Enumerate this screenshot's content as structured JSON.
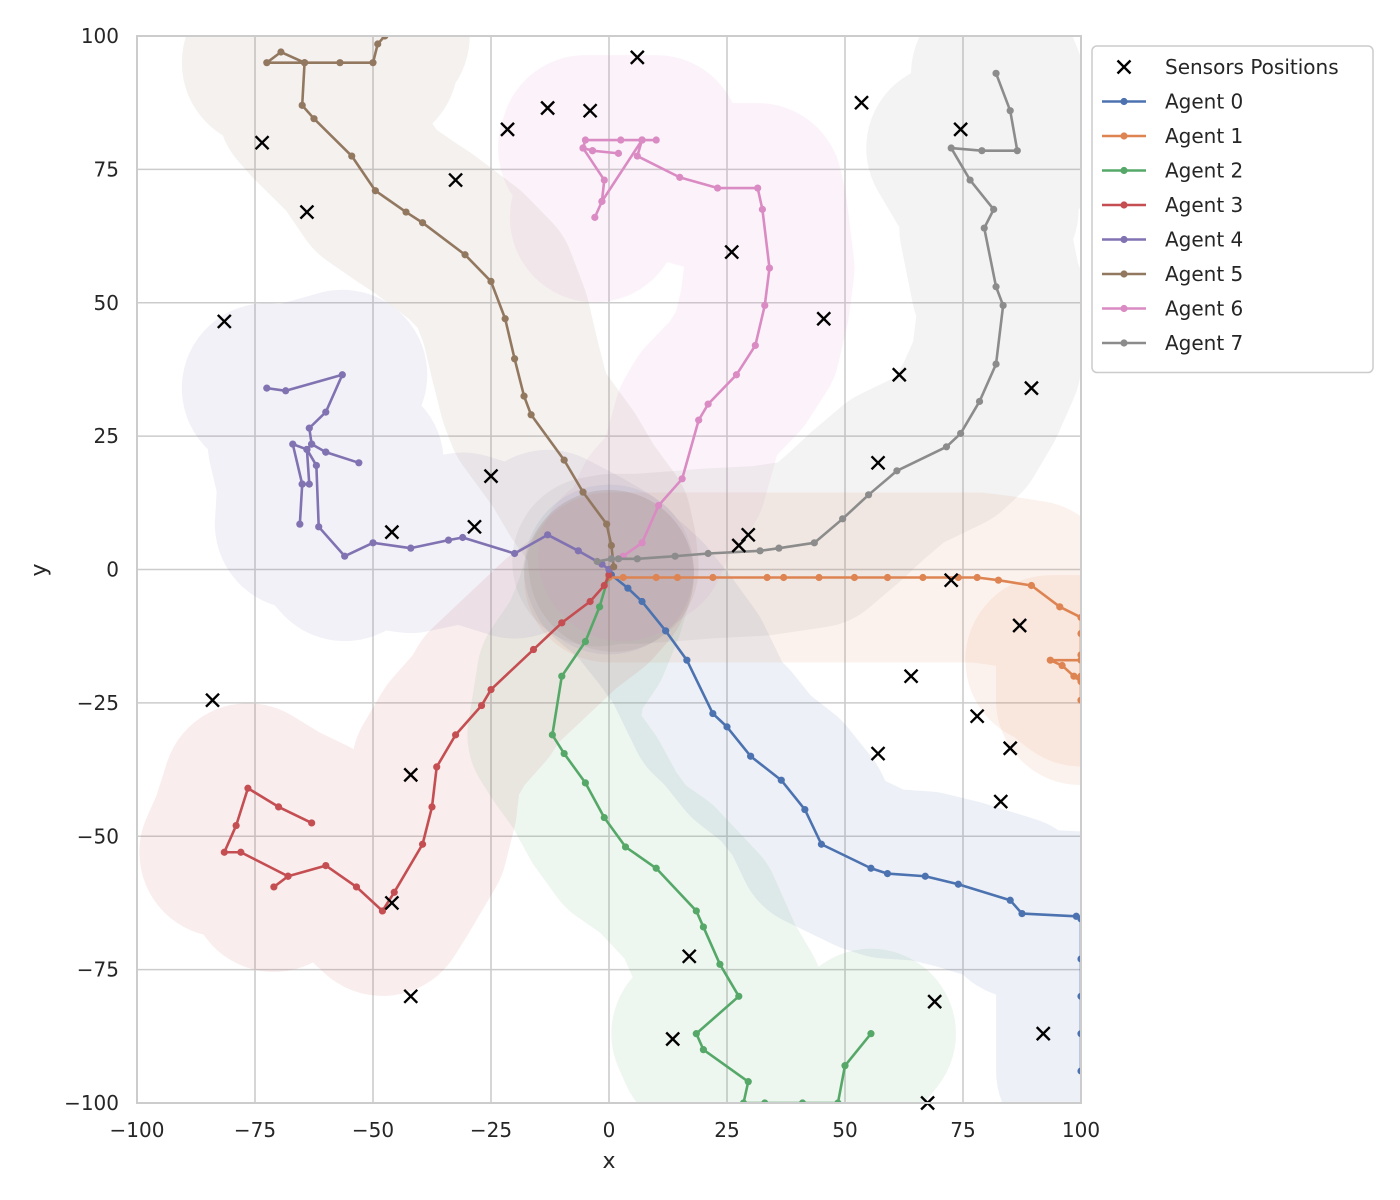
{
  "chart_data": {
    "type": "line",
    "title": "",
    "xlabel": "x",
    "ylabel": "y",
    "xlim": [
      -100,
      100
    ],
    "ylim": [
      -100,
      100
    ],
    "xticks": [
      -100,
      -75,
      -50,
      -25,
      0,
      25,
      50,
      75,
      100
    ],
    "yticks": [
      -100,
      -75,
      -50,
      -25,
      0,
      25,
      50,
      75,
      100
    ],
    "xtick_labels": [
      "−100",
      "−75",
      "−50",
      "−25",
      "0",
      "25",
      "50",
      "75",
      "100"
    ],
    "ytick_labels": [
      "−100",
      "−75",
      "−50",
      "−25",
      "0",
      "25",
      "50",
      "75",
      "100"
    ],
    "grid": true,
    "legend_position": "outside top-right",
    "coverage_radius": 18,
    "sensors": {
      "name": "Sensors Positions",
      "marker": "x",
      "color": "#000000",
      "points": [
        [
          6,
          96
        ],
        [
          -13,
          86.5
        ],
        [
          -4,
          86
        ],
        [
          -21.5,
          82.5
        ],
        [
          -73.5,
          80
        ],
        [
          -32.5,
          73
        ],
        [
          -64,
          67
        ],
        [
          -81.5,
          46.5
        ],
        [
          53.5,
          87.5
        ],
        [
          74.5,
          82.5
        ],
        [
          26,
          59.5
        ],
        [
          45.5,
          47
        ],
        [
          61.5,
          36.5
        ],
        [
          89.5,
          34
        ],
        [
          57,
          20
        ],
        [
          -25,
          17.5
        ],
        [
          -28.5,
          8
        ],
        [
          -46,
          7
        ],
        [
          29.5,
          6.5
        ],
        [
          27.5,
          4.5
        ],
        [
          72.5,
          -2
        ],
        [
          87,
          -10.5
        ],
        [
          64,
          -20
        ],
        [
          78,
          -27.5
        ],
        [
          85,
          -33.5
        ],
        [
          57,
          -34.5
        ],
        [
          83,
          -43.5
        ],
        [
          -84,
          -24.5
        ],
        [
          -42,
          -38.5
        ],
        [
          -46,
          -62.5
        ],
        [
          -42,
          -80
        ],
        [
          17,
          -72.5
        ],
        [
          13.5,
          -88
        ],
        [
          69,
          -81
        ],
        [
          92,
          -87
        ],
        [
          67.5,
          -100
        ]
      ]
    },
    "series": [
      {
        "name": "Agent 0",
        "color": "#4c72b0",
        "points": [
          [
            0,
            0
          ],
          [
            0.5,
            -1
          ],
          [
            4,
            -3.5
          ],
          [
            7,
            -6
          ],
          [
            12,
            -11.5
          ],
          [
            16.5,
            -17
          ],
          [
            22,
            -27
          ],
          [
            25,
            -29.5
          ],
          [
            30,
            -35
          ],
          [
            36.5,
            -39.5
          ],
          [
            41.5,
            -45
          ],
          [
            45,
            -51.5
          ],
          [
            55.5,
            -56
          ],
          [
            59,
            -57
          ],
          [
            67,
            -57.5
          ],
          [
            74,
            -59
          ],
          [
            85,
            -62
          ],
          [
            87.5,
            -64.5
          ],
          [
            99,
            -65
          ],
          [
            100,
            -65.5
          ],
          [
            100,
            -73
          ],
          [
            100,
            -80
          ],
          [
            100,
            -87
          ],
          [
            100,
            -94
          ]
        ]
      },
      {
        "name": "Agent 1",
        "color": "#dd8452",
        "points": [
          [
            0,
            -1.5
          ],
          [
            3,
            -1.5
          ],
          [
            10,
            -1.5
          ],
          [
            14.5,
            -1.5
          ],
          [
            22,
            -1.5
          ],
          [
            33.5,
            -1.5
          ],
          [
            37,
            -1.5
          ],
          [
            44.5,
            -1.5
          ],
          [
            52,
            -1.5
          ],
          [
            59,
            -1.5
          ],
          [
            66.5,
            -1.5
          ],
          [
            74,
            -1.5
          ],
          [
            78,
            -1.5
          ],
          [
            82.5,
            -2
          ],
          [
            89.5,
            -3
          ],
          [
            95.5,
            -7
          ],
          [
            100,
            -9
          ],
          [
            100,
            -12
          ],
          [
            100,
            -16
          ],
          [
            100,
            -20
          ],
          [
            100,
            -24.5
          ]
        ]
      },
      {
        "name": "Agent 1 tail",
        "color": "#dd8452",
        "legend": false,
        "points": [
          [
            100,
            -17
          ],
          [
            93.5,
            -17
          ],
          [
            96,
            -18
          ],
          [
            98.5,
            -20
          ],
          [
            100,
            -21
          ]
        ]
      },
      {
        "name": "Agent 2",
        "color": "#55a868",
        "points": [
          [
            0,
            -1
          ],
          [
            -2,
            -7
          ],
          [
            -5,
            -13.5
          ],
          [
            -10,
            -20
          ],
          [
            -12,
            -31
          ],
          [
            -9.5,
            -34.5
          ],
          [
            -5,
            -40
          ],
          [
            -1,
            -46.5
          ],
          [
            3.5,
            -52
          ],
          [
            10,
            -56
          ],
          [
            18.5,
            -64
          ],
          [
            20,
            -67
          ],
          [
            23.5,
            -74
          ],
          [
            27.5,
            -80
          ],
          [
            18.5,
            -87
          ],
          [
            20,
            -90
          ],
          [
            29.5,
            -96
          ],
          [
            28.5,
            -100
          ],
          [
            33,
            -100
          ],
          [
            41,
            -100
          ],
          [
            48.5,
            -100
          ],
          [
            50,
            -93
          ],
          [
            55.5,
            -87
          ]
        ]
      },
      {
        "name": "Agent 3",
        "color": "#c44e52",
        "points": [
          [
            0,
            -1
          ],
          [
            -1,
            -3
          ],
          [
            -4,
            -6
          ],
          [
            -10,
            -10
          ],
          [
            -16,
            -15
          ],
          [
            -25,
            -22.5
          ],
          [
            -27,
            -25.5
          ],
          [
            -32.5,
            -31
          ],
          [
            -36.5,
            -37
          ],
          [
            -37.5,
            -44.5
          ],
          [
            -39.5,
            -51.5
          ],
          [
            -45.5,
            -60.5
          ],
          [
            -48,
            -64
          ],
          [
            -53.5,
            -59.5
          ],
          [
            -60,
            -55.5
          ],
          [
            -68,
            -57.5
          ],
          [
            -71,
            -59.5
          ],
          [
            -68,
            -57.5
          ],
          [
            -78,
            -53
          ],
          [
            -81.5,
            -53
          ],
          [
            -79,
            -48
          ],
          [
            -76.5,
            -41
          ],
          [
            -70,
            -44.5
          ],
          [
            -63,
            -47.5
          ]
        ]
      },
      {
        "name": "Agent 4",
        "color": "#8172b2",
        "points": [
          [
            0,
            0
          ],
          [
            -1.5,
            1
          ],
          [
            -6.5,
            3.5
          ],
          [
            -13,
            6.5
          ],
          [
            -20,
            3
          ],
          [
            -31,
            6
          ],
          [
            -34,
            5.5
          ],
          [
            -42,
            4
          ],
          [
            -50,
            5
          ],
          [
            -56,
            2.5
          ],
          [
            -61.5,
            8
          ],
          [
            -62,
            19.5
          ],
          [
            -64,
            22.5
          ],
          [
            -67,
            23.5
          ],
          [
            -65,
            16
          ],
          [
            -65.5,
            8.5
          ],
          [
            -65,
            16
          ],
          [
            -63.5,
            16
          ],
          [
            -64,
            22.5
          ],
          [
            -63,
            23.5
          ],
          [
            -60,
            22
          ],
          [
            -53,
            20
          ],
          [
            -60,
            22
          ],
          [
            -63,
            23.5
          ],
          [
            -63.5,
            26.5
          ],
          [
            -60,
            29.5
          ],
          [
            -56.5,
            36.5
          ],
          [
            -68.5,
            33.5
          ],
          [
            -72.5,
            34
          ]
        ]
      },
      {
        "name": "Agent 5",
        "color": "#937860",
        "points": [
          [
            1,
            0.5
          ],
          [
            0.5,
            4.5
          ],
          [
            -0.5,
            8.5
          ],
          [
            -5.5,
            14.5
          ],
          [
            -9.5,
            20.5
          ],
          [
            -16.5,
            29
          ],
          [
            -18,
            32.5
          ],
          [
            -20,
            39.5
          ],
          [
            -22,
            47
          ],
          [
            -25,
            54
          ],
          [
            -30.5,
            59
          ],
          [
            -39.5,
            65
          ],
          [
            -43,
            67
          ],
          [
            -49.5,
            71
          ],
          [
            -54.5,
            77.5
          ],
          [
            -62.5,
            84.5
          ],
          [
            -65,
            87
          ],
          [
            -64.5,
            95
          ],
          [
            -72.5,
            95
          ],
          [
            -69.5,
            97
          ],
          [
            -64.5,
            95
          ],
          [
            -57,
            95
          ],
          [
            -50,
            95
          ],
          [
            -49,
            98.5
          ],
          [
            -47.5,
            100
          ]
        ]
      },
      {
        "name": "Agent 6",
        "color": "#da8bc3",
        "points": [
          [
            3,
            2.5
          ],
          [
            7,
            5
          ],
          [
            10.5,
            12
          ],
          [
            15.5,
            17
          ],
          [
            19,
            28
          ],
          [
            21,
            31
          ],
          [
            27,
            36.5
          ],
          [
            31,
            42
          ],
          [
            33,
            49.5
          ],
          [
            34,
            56.5
          ],
          [
            32.5,
            67.5
          ],
          [
            31.5,
            71.5
          ],
          [
            23,
            71.5
          ],
          [
            15,
            73.5
          ],
          [
            6,
            77.5
          ],
          [
            7,
            80.5
          ],
          [
            10,
            80.5
          ],
          [
            7,
            80.5
          ],
          [
            2.5,
            80.5
          ],
          [
            -5,
            80.5
          ],
          [
            -5.5,
            79
          ],
          [
            -3.5,
            78.5
          ],
          [
            2,
            78
          ],
          [
            -3.5,
            78.5
          ],
          [
            -5.5,
            79
          ],
          [
            -1,
            73
          ],
          [
            -1.5,
            69
          ],
          [
            -3,
            66
          ],
          [
            -1.5,
            69
          ],
          [
            7,
            80.5
          ]
        ]
      },
      {
        "name": "Agent 7",
        "color": "#8c8c8c",
        "points": [
          [
            -2.5,
            1.5
          ],
          [
            0.5,
            2
          ],
          [
            2,
            2
          ],
          [
            6,
            2
          ],
          [
            14,
            2.5
          ],
          [
            21,
            3
          ],
          [
            32,
            3.5
          ],
          [
            36,
            4
          ],
          [
            43.5,
            5
          ],
          [
            49.5,
            9.5
          ],
          [
            55,
            14
          ],
          [
            61,
            18.5
          ],
          [
            71.5,
            23
          ],
          [
            74.5,
            25.5
          ],
          [
            78.5,
            31.5
          ],
          [
            82,
            38.5
          ],
          [
            83.5,
            49.5
          ],
          [
            82,
            53
          ],
          [
            79.5,
            64
          ],
          [
            81.5,
            67.5
          ],
          [
            76.5,
            73
          ],
          [
            72.5,
            79
          ],
          [
            79,
            78.5
          ],
          [
            86.5,
            78.5
          ],
          [
            85,
            86
          ],
          [
            82,
            93
          ]
        ]
      }
    ]
  }
}
